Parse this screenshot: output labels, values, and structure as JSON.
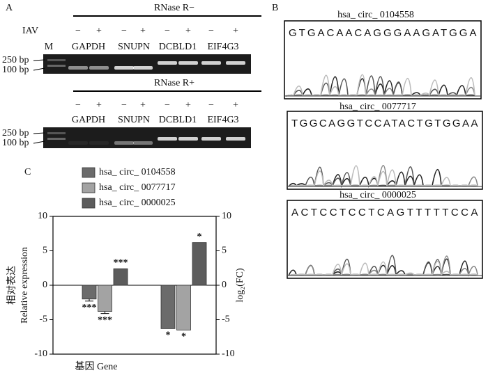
{
  "panel_a": {
    "letter": "A",
    "top": {
      "condition": "RNase R−",
      "row_label": "IAV",
      "signs": [
        "−",
        "+",
        "−",
        "+",
        "−",
        "+",
        "−",
        "+"
      ],
      "marker": "M",
      "genes": [
        "GAPDH",
        "SNUPN",
        "DCBLD1",
        "EIF4G3"
      ],
      "sizes": [
        "250 bp",
        "100 bp"
      ]
    },
    "bottom": {
      "condition": "RNase R+",
      "signs": [
        "−",
        "+",
        "−",
        "+",
        "−",
        "+",
        "−",
        "+"
      ],
      "genes": [
        "GAPDH",
        "SNUPN",
        "DCBLD1",
        "EIF4G3"
      ],
      "sizes": [
        "250 bp",
        "100 bp"
      ]
    }
  },
  "panel_b": {
    "letter": "B",
    "traces": [
      {
        "title": "hsa_ circ_ 0104558",
        "sequence": "GTGACAACAGGGAAGATGGA"
      },
      {
        "title": "hsa_ circ_ 0077717",
        "sequence": "TGGCAGGTCCATACTGTGGAA"
      },
      {
        "title": "hsa_ circ_ 0000025",
        "sequence": "ACTCCTCCTCAGTTTTTCCA"
      }
    ]
  },
  "chart_data": {
    "type": "bar",
    "letter": "C",
    "ylabel": [
      "相对表达",
      "Relative expression"
    ],
    "y2label": "log₂(FC)",
    "xlabel": "基因 Gene",
    "categories": [
      null,
      null
    ],
    "series": [
      {
        "name": "hsa_ circ_ 0104558",
        "color": "#6b6b6b",
        "values": [
          -2.0,
          -6.3
        ],
        "errors": [
          0.3,
          null
        ],
        "annotations": [
          "***",
          "*"
        ]
      },
      {
        "name": "hsa_ circ_ 0077717",
        "color": "#a3a3a3",
        "values": [
          -3.8,
          -6.5
        ],
        "errors": [
          0.3,
          null
        ],
        "annotations": [
          "***",
          "*"
        ]
      },
      {
        "name": "hsa_ circ_ 0000025",
        "color": "#5c5c5c",
        "values": [
          2.4,
          6.2
        ],
        "annotations": [
          "***",
          "*"
        ]
      }
    ],
    "category_axes": [
      "y",
      "y2"
    ],
    "ylim": [
      -10,
      10
    ],
    "yticks": [
      10,
      5,
      0,
      -5,
      -10
    ],
    "y2lim": [
      -10,
      10
    ],
    "y2ticks": [
      10,
      5,
      0,
      -5,
      -10
    ]
  }
}
